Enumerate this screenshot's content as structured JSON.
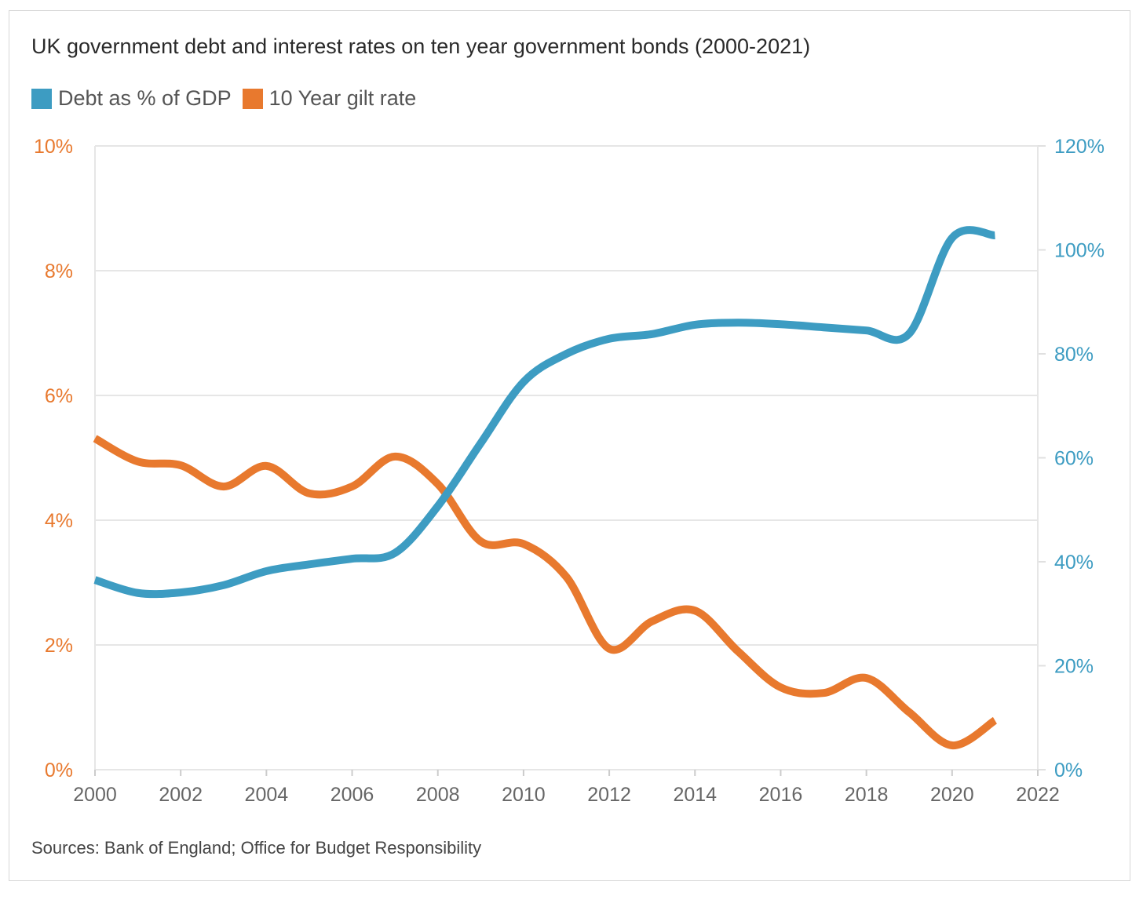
{
  "chart_data": {
    "type": "line",
    "title": "UK government debt and interest rates on ten year government bonds (2000-2021)",
    "source": "Sources: Bank of England; Office for Budget Responsibility",
    "x": [
      2000,
      2001,
      2002,
      2003,
      2004,
      2005,
      2006,
      2007,
      2008,
      2009,
      2010,
      2011,
      2012,
      2013,
      2014,
      2015,
      2016,
      2017,
      2018,
      2019,
      2020,
      2021
    ],
    "xlim": [
      2000,
      2022
    ],
    "x_ticks": [
      "2000",
      "2002",
      "2004",
      "2006",
      "2008",
      "2010",
      "2012",
      "2014",
      "2016",
      "2018",
      "2020",
      "2022"
    ],
    "series": [
      {
        "name": "Debt as % of GDP",
        "axis": "right",
        "color": "#3d9cc2",
        "values": [
          36.5,
          34.0,
          34.1,
          35.5,
          38.2,
          39.5,
          40.6,
          41.7,
          50.7,
          62.8,
          74.6,
          80.0,
          82.9,
          83.8,
          85.6,
          86.0,
          85.7,
          85.1,
          84.5,
          83.9,
          102.3,
          102.8
        ]
      },
      {
        "name": "10 Year gilt rate",
        "axis": "left",
        "color": "#e8792e",
        "values": [
          5.31,
          4.94,
          4.88,
          4.54,
          4.87,
          4.43,
          4.54,
          5.02,
          4.58,
          3.66,
          3.62,
          3.09,
          1.94,
          2.38,
          2.55,
          1.9,
          1.32,
          1.23,
          1.47,
          0.92,
          0.39,
          0.79
        ]
      }
    ],
    "left_axis": {
      "ylim": [
        0,
        10
      ],
      "ticks": [
        "0%",
        "2%",
        "4%",
        "6%",
        "8%",
        "10%"
      ],
      "color": "#e8792e"
    },
    "right_axis": {
      "ylim": [
        0,
        120
      ],
      "ticks": [
        "0%",
        "20%",
        "40%",
        "60%",
        "80%",
        "100%",
        "120%"
      ],
      "color": "#3d9cc2"
    },
    "grid": true,
    "legend_position": "top-left"
  }
}
